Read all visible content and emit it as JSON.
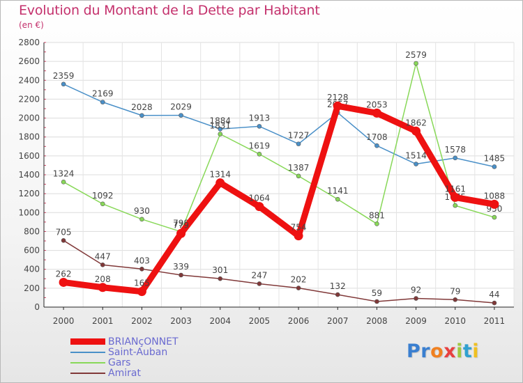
{
  "chart_data": {
    "type": "line",
    "title": "Evolution du Montant de la Dette par Habitant",
    "subtitle": "(en €)",
    "xlabel": "",
    "ylabel": "",
    "ylim": [
      0,
      2800
    ],
    "yticks": [
      "0",
      "200",
      "400",
      "600",
      "800",
      "1000",
      "1200",
      "1400",
      "1600",
      "1800",
      "2000",
      "2200",
      "2400",
      "2600",
      "2800"
    ],
    "categories": [
      "2000",
      "2001",
      "2002",
      "2003",
      "2004",
      "2005",
      "2006",
      "2007",
      "2008",
      "2009",
      "2010",
      "2011"
    ],
    "series": [
      {
        "name": "Saint-Auban",
        "color": "#4a90c8",
        "values": [
          2359,
          2169,
          2028,
          2029,
          1884,
          1913,
          1727,
          2057,
          1708,
          1514,
          1578,
          1485
        ],
        "labels": [
          "2359",
          "2169",
          "2028",
          "2029",
          "1884",
          "1913",
          "1727",
          "2057",
          "1708",
          "1514",
          "1578",
          "1485"
        ]
      },
      {
        "name": "Gars",
        "color": "#88d858",
        "values": [
          1324,
          1092,
          930,
          798,
          1831,
          1619,
          1387,
          1141,
          881,
          2579,
          1075,
          950
        ],
        "labels": [
          "1324",
          "1092",
          "930",
          "798",
          "1831",
          "1619",
          "1387",
          "1141",
          "881",
          "2579",
          "1075",
          "950"
        ]
      },
      {
        "name": "Amirat",
        "color": "#803838",
        "values": [
          705,
          447,
          403,
          339,
          301,
          247,
          202,
          132,
          59,
          92,
          79,
          44
        ],
        "labels": [
          "705",
          "447",
          "403",
          "339",
          "301",
          "247",
          "202",
          "132",
          "59",
          "92",
          "79",
          "44"
        ]
      },
      {
        "name": "BRIANçONNET",
        "color": "#ee1111",
        "values": [
          262,
          208,
          165,
          779,
          1314,
          1064,
          754,
          2128,
          2053,
          1862,
          1161,
          1088
        ],
        "labels": [
          "262",
          "208",
          "165",
          "779",
          "1314",
          "1064",
          "754",
          "2128",
          "2053",
          "1862",
          "1161",
          "1088"
        ]
      }
    ],
    "legend": [
      {
        "name": "BRIANçONNET",
        "color": "#ee1111"
      },
      {
        "name": "Saint-Auban",
        "color": "#4a90c8"
      },
      {
        "name": "Gars",
        "color": "#88d858"
      },
      {
        "name": "Amirat",
        "color": "#803838"
      }
    ]
  },
  "logo": {
    "letters": [
      "P",
      "r",
      "o",
      "x",
      "i",
      "t",
      "i"
    ],
    "colors": [
      "#3a7fd0",
      "#3a7fd0",
      "#f08020",
      "#e84040",
      "#a0c840",
      "#30a0d0",
      "#f0c020"
    ]
  }
}
